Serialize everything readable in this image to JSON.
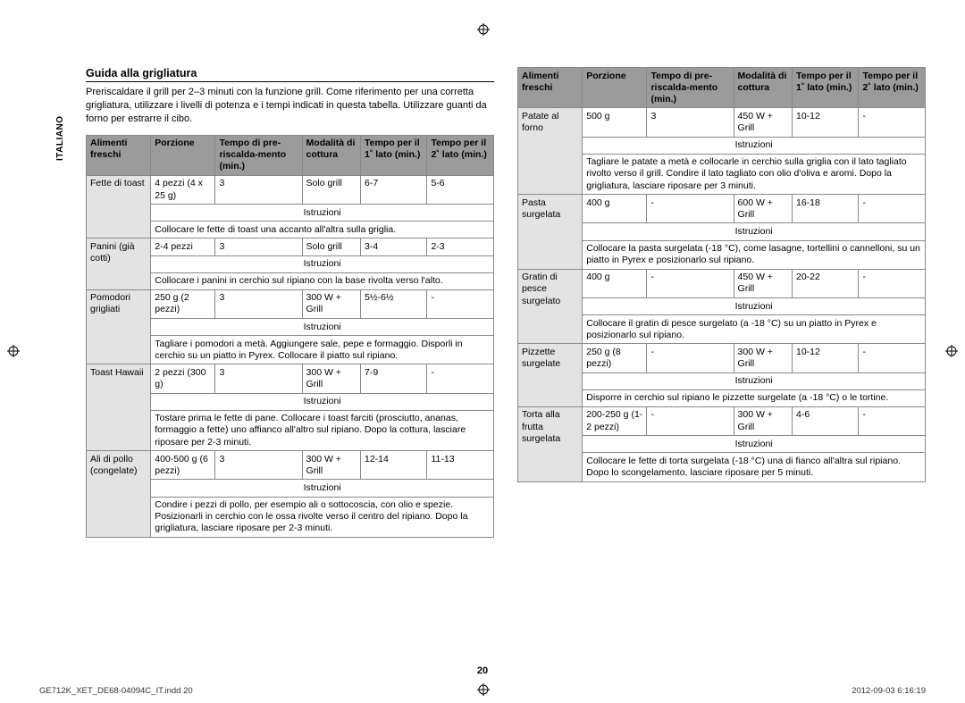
{
  "sideLabel": "ITALIANO",
  "sectionTitle": "Guida alla grigliatura",
  "intro": "Preriscaldare il grill per 2–3 minuti con la funzione grill.\nCome riferimento per una corretta grigliatura, utilizzare i livelli di potenza e i tempi indicati in questa tabella. Utilizzare guanti da forno per estrarre il cibo.",
  "headers": {
    "food": "Alimenti freschi",
    "portion": "Porzione",
    "preheat": "Tempo di pre-riscalda-mento (min.)",
    "mode": "Modalità di cottura",
    "time1": "Tempo per il 1˚ lato (min.)",
    "time2": "Tempo per il 2˚ lato (min.)"
  },
  "instrLabel": "Istruzioni",
  "pageNumber": "20",
  "footerLeft": "GE712K_XET_DE68-04094C_IT.indd   20",
  "footerRight": "2012-09-03   6:16:19",
  "left": [
    {
      "food": "Fette di toast",
      "portion": "4 pezzi (4 x 25 g)",
      "preheat": "3",
      "mode": "Solo grill",
      "t1": "6-7",
      "t2": "5-6",
      "instr": "Collocare le fette di toast una accanto all'altra sulla griglia."
    },
    {
      "food": "Panini (già cotti)",
      "portion": "2-4 pezzi",
      "preheat": "3",
      "mode": "Solo grill",
      "t1": "3-4",
      "t2": "2-3",
      "instr": "Collocare i panini in cerchio sul ripiano con la base rivolta verso l'alto."
    },
    {
      "food": "Pomodori grigliati",
      "portion": "250 g (2 pezzi)",
      "preheat": "3",
      "mode": "300 W + Grill",
      "t1": "5½-6½",
      "t2": "-",
      "instr": "Tagliare i pomodori a metà. Aggiungere sale, pepe e formaggio. Disporli in cerchio su un piatto in Pyrex. Collocare il piatto sul ripiano."
    },
    {
      "food": "Toast Hawaii",
      "portion": "2 pezzi (300 g)",
      "preheat": "3",
      "mode": "300 W + Grill",
      "t1": "7-9",
      "t2": "-",
      "instr": "Tostare prima le fette di pane. Collocare i toast farciti (prosciutto, ananas, formaggio a fette) uno affianco all'altro sul ripiano. Dopo la cottura, lasciare riposare per 2-3 minuti."
    },
    {
      "food": "Ali di pollo (congelate)",
      "portion": "400-500 g (6 pezzi)",
      "preheat": "3",
      "mode": "300 W + Grill",
      "t1": "12-14",
      "t2": "11-13",
      "instr": "Condire i pezzi di pollo, per esempio ali o sottocoscia, con olio e spezie. Posizionarli in cerchio con le ossa rivolte verso il centro del ripiano. Dopo la grigliatura, lasciare riposare per 2-3 minuti."
    }
  ],
  "right": [
    {
      "food": "Patate al forno",
      "portion": "500 g",
      "preheat": "3",
      "mode": "450 W + Grill",
      "t1": "10-12",
      "t2": "-",
      "instr": "Tagliare le patate a metà e collocarle in cerchio sulla griglia con il lato tagliato rivolto verso il grill. Condire il lato tagliato con olio d'oliva e aromi. Dopo la grigliatura, lasciare riposare per 3 minuti."
    },
    {
      "food": "Pasta surgelata",
      "portion": "400 g",
      "preheat": "-",
      "mode": "600 W + Grill",
      "t1": "16-18",
      "t2": "-",
      "instr": "Collocare la pasta surgelata (-18 °C), come lasagne, tortellini o cannelloni, su un piatto in Pyrex e posizionarlo sul ripiano."
    },
    {
      "food": "Gratin di pesce surgelato",
      "portion": "400 g",
      "preheat": "-",
      "mode": "450 W + Grill",
      "t1": "20-22",
      "t2": "-",
      "instr": "Collocare il gratin di pesce surgelato (a -18 °C) su un piatto in Pyrex e posizionarlo sul ripiano."
    },
    {
      "food": "Pizzette surgelate",
      "portion": "250 g (8 pezzi)",
      "preheat": "-",
      "mode": "300 W + Grill",
      "t1": "10-12",
      "t2": "-",
      "instr": "Disporre in cerchio sul ripiano le pizzette surgelate (a -18 °C) o le tortine."
    },
    {
      "food": "Torta alla frutta surgelata",
      "portion": "200-250 g (1-2 pezzi)",
      "preheat": "-",
      "mode": "300 W + Grill",
      "t1": "4-6",
      "t2": "-",
      "instr": "Collocare le fette di torta surgelata (-18 °C) una di fianco all'altra sul ripiano. Dopo lo scongelamento, lasciare riposare per 5 minuti."
    }
  ]
}
